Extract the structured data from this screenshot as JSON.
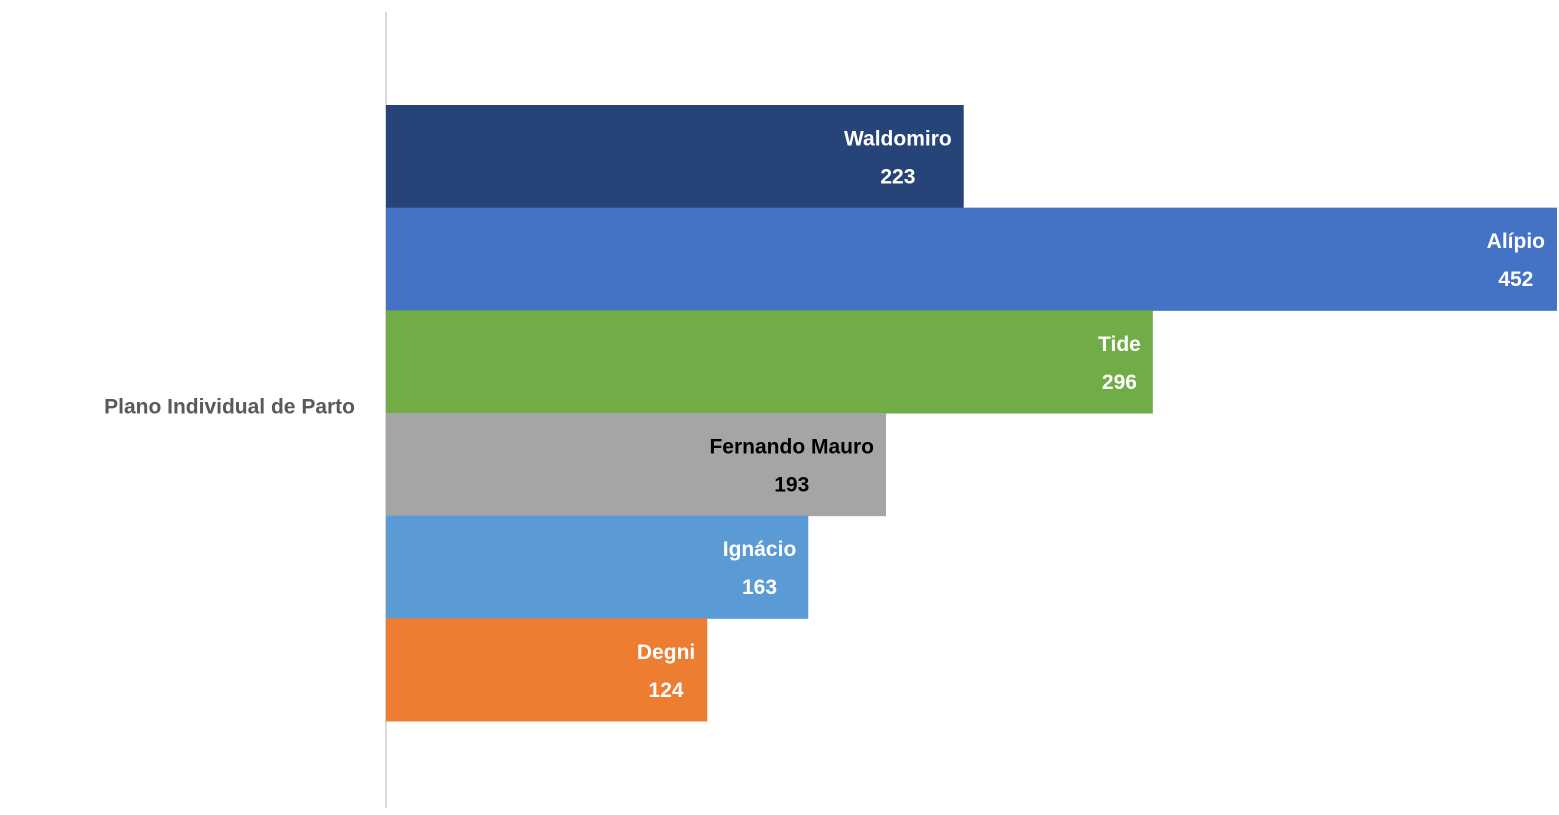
{
  "chart_data": {
    "type": "bar",
    "orientation": "horizontal",
    "categories": [
      "Plano Individual de Parto"
    ],
    "series": [
      {
        "name": "Waldomiro",
        "color": "#264478",
        "label_color": "#ffffff",
        "values": [
          223
        ]
      },
      {
        "name": "Alípio",
        "color": "#4472c4",
        "label_color": "#ffffff",
        "values": [
          452
        ]
      },
      {
        "name": "Tide",
        "color": "#70ad47",
        "label_color": "#ffffff",
        "values": [
          296
        ]
      },
      {
        "name": "Fernando Mauro",
        "color": "#a5a5a5",
        "label_color": "#000000",
        "values": [
          193
        ]
      },
      {
        "name": "Ignácio",
        "color": "#5b9bd5",
        "label_color": "#ffffff",
        "values": [
          163
        ]
      },
      {
        "name": "Degni",
        "color": "#ed7d31",
        "label_color": "#ffffff",
        "values": [
          124
        ]
      }
    ]
  }
}
